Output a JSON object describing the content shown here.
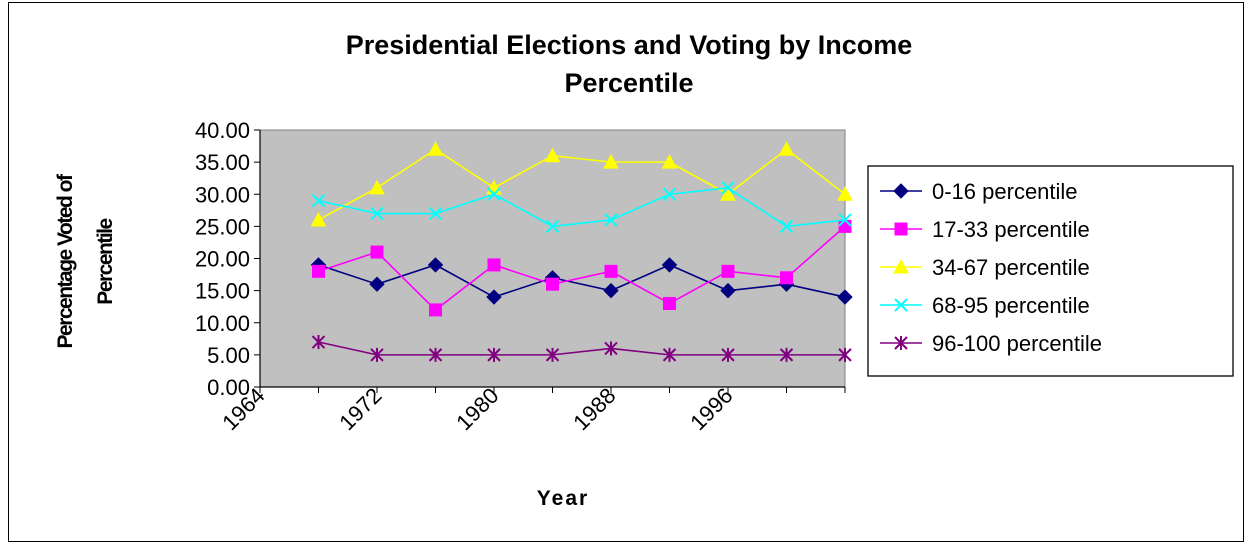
{
  "chart_data": {
    "type": "line",
    "title_line1": "Presidential Elections and Voting by Income",
    "title_line2": "Percentile",
    "xlabel": "Year",
    "ylabel_line1": "Percentage Voted of",
    "ylabel_line2": "Percentile",
    "xlim": [
      1964,
      2004
    ],
    "ylim": [
      0,
      40
    ],
    "y_ticks": [
      "0.00",
      "5.00",
      "10.00",
      "15.00",
      "20.00",
      "25.00",
      "30.00",
      "35.00",
      "40.00"
    ],
    "x_ticks": [
      "1964",
      "1972",
      "1980",
      "1988",
      "1996"
    ],
    "x": [
      1968,
      1972,
      1976,
      1980,
      1984,
      1988,
      1992,
      1996,
      2000,
      2004
    ],
    "plot_background": "#c0c0c0",
    "legend_position": "right",
    "series": [
      {
        "name": "0-16 percentile",
        "color": "#000080",
        "marker": "diamond",
        "values": [
          19,
          16,
          19,
          14,
          17,
          15,
          19,
          15,
          16,
          14
        ]
      },
      {
        "name": "17-33 percentile",
        "color": "#ff00ff",
        "marker": "square",
        "values": [
          18,
          21,
          12,
          19,
          16,
          18,
          13,
          18,
          17,
          25
        ]
      },
      {
        "name": "34-67 percentile",
        "color": "#ffff00",
        "marker": "triangle",
        "values": [
          26,
          31,
          37,
          31,
          36,
          35,
          35,
          30,
          37,
          30
        ]
      },
      {
        "name": "68-95 percentile",
        "color": "#00ffff",
        "marker": "x",
        "values": [
          29,
          27,
          27,
          30,
          25,
          26,
          30,
          31,
          25,
          26
        ]
      },
      {
        "name": "96-100 percentile",
        "color": "#800080",
        "marker": "star",
        "values": [
          7,
          5,
          5,
          5,
          5,
          6,
          5,
          5,
          5,
          5
        ]
      }
    ]
  }
}
